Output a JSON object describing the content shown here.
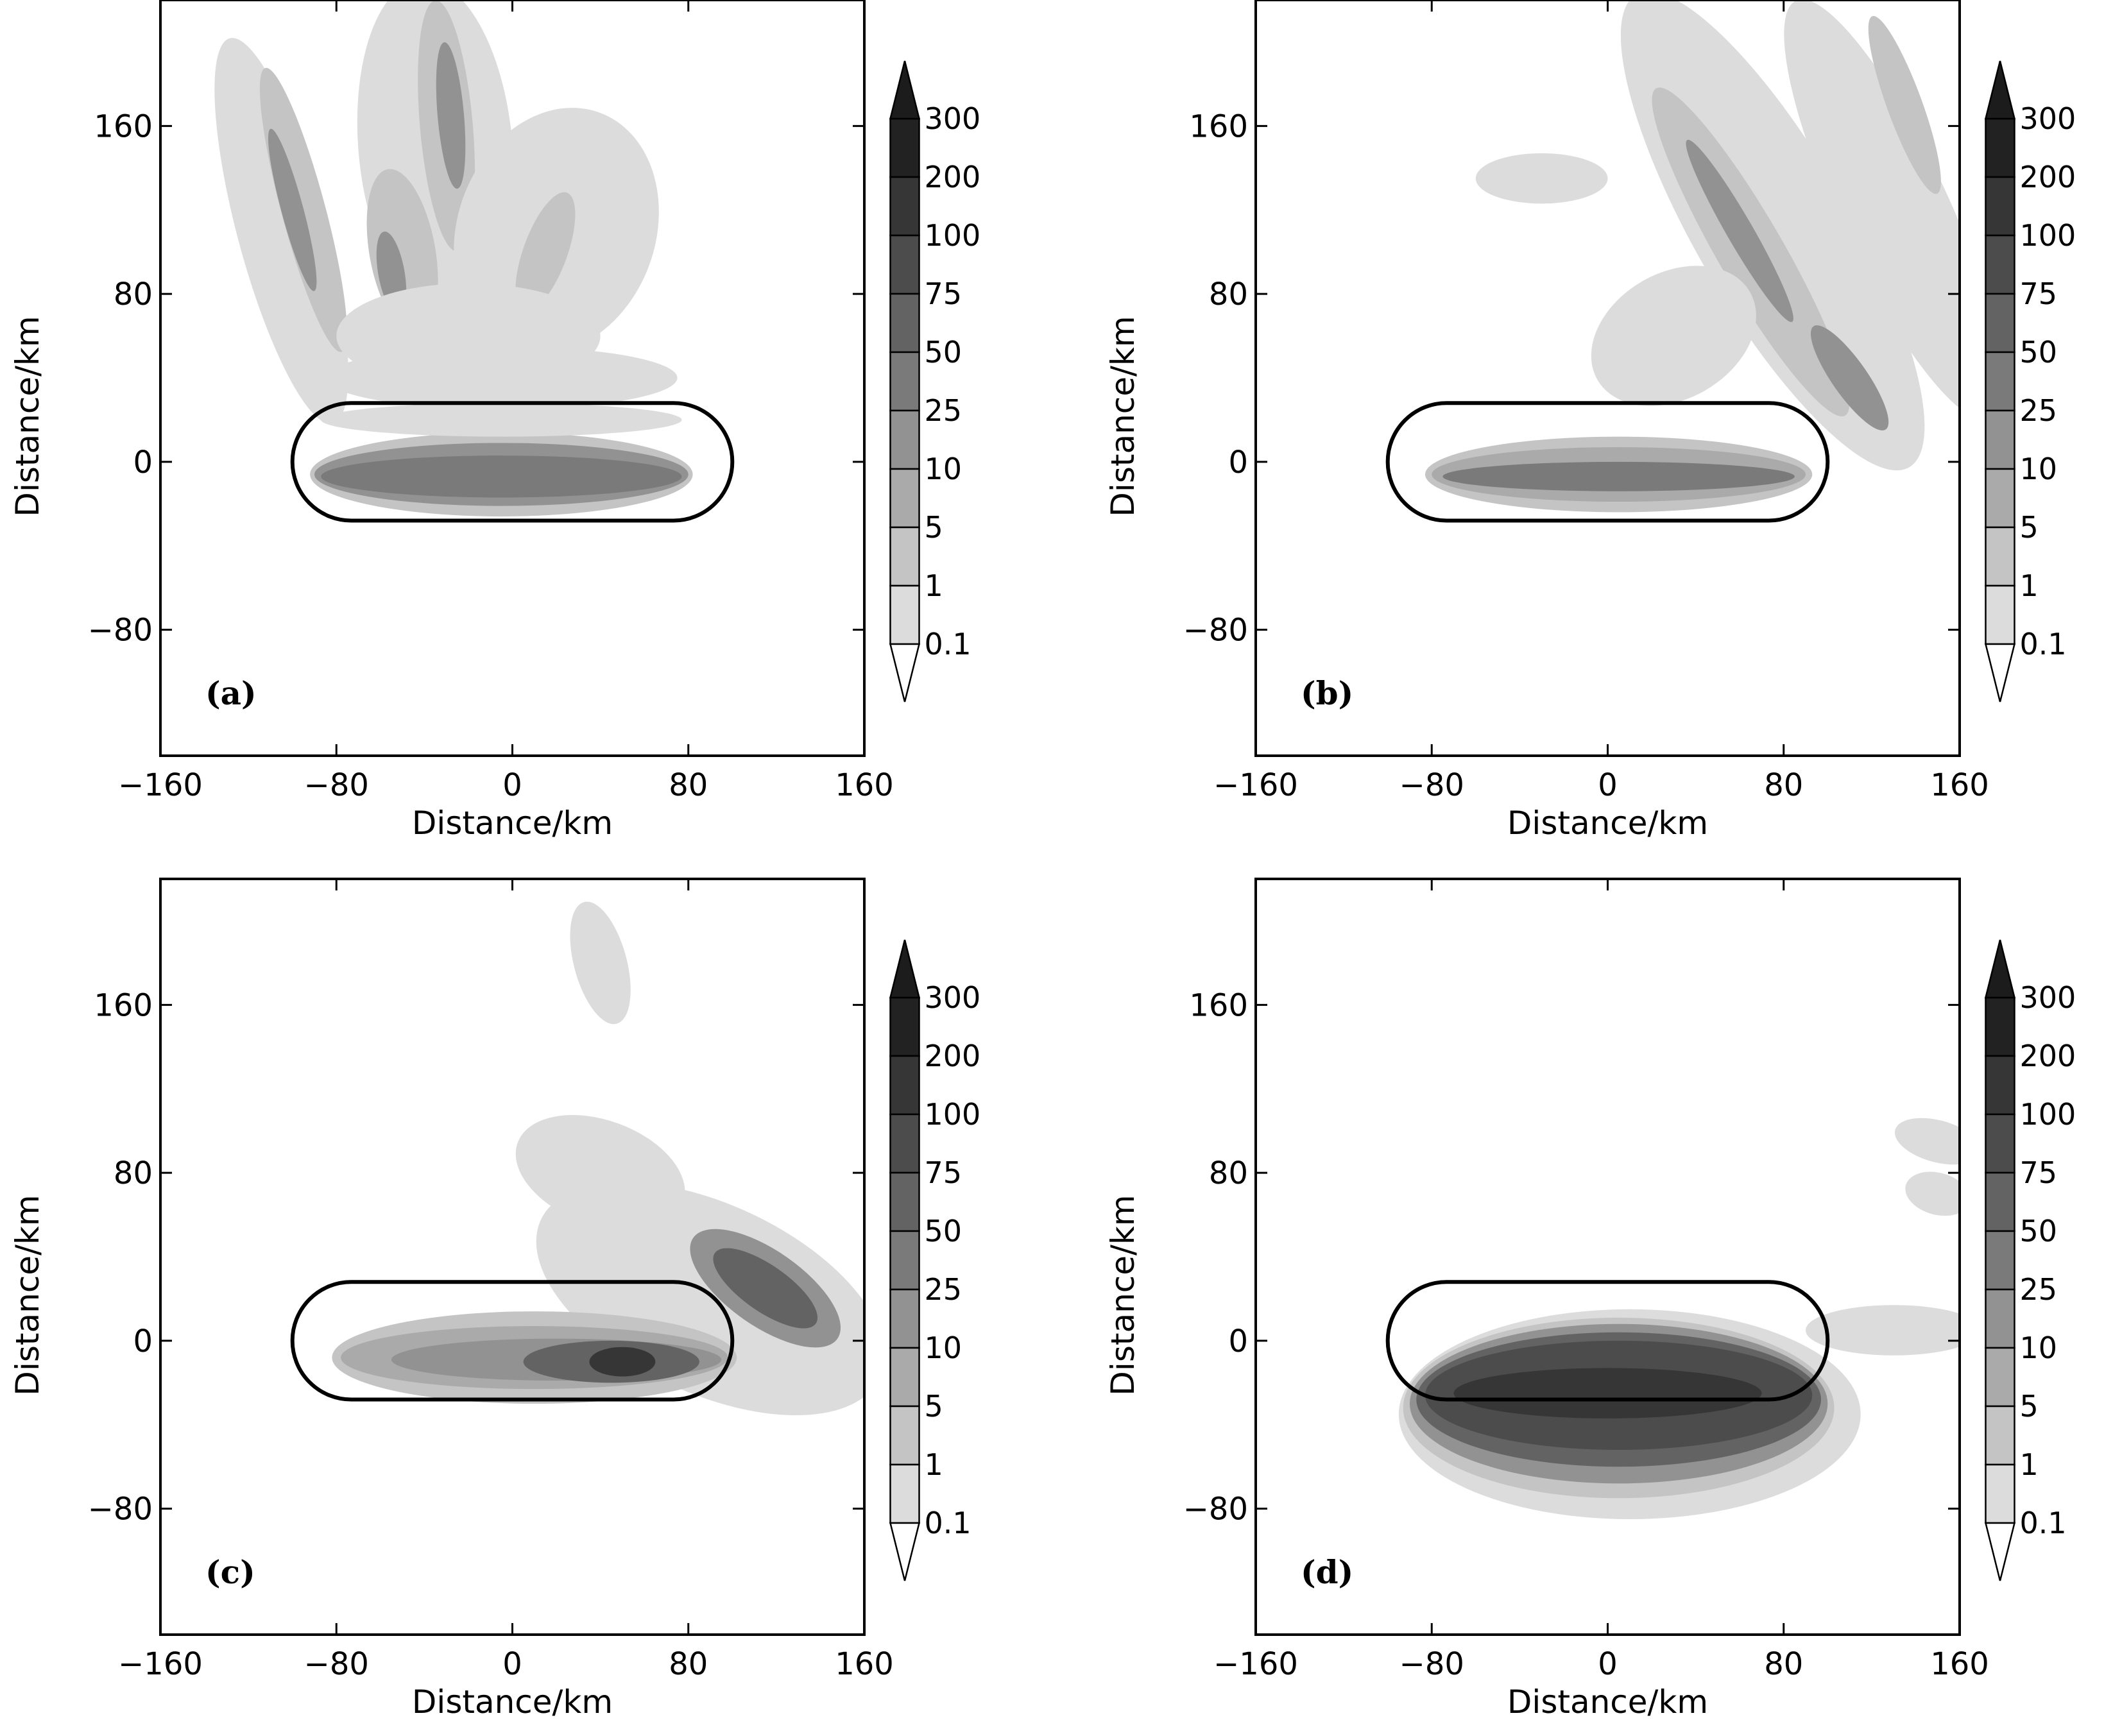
{
  "chart_data": [
    {
      "type": "heatmap",
      "panel_label": "(a)",
      "xlabel": "Distance/km",
      "ylabel": "Distance/km",
      "xlim": [
        -160,
        160
      ],
      "ylim": [
        -140,
        220
      ],
      "xticks": [
        "−160",
        "−80",
        "0",
        "80",
        "160"
      ],
      "yticks": [
        "160",
        "80",
        "0",
        "−80"
      ],
      "colorbar_levels": [
        "300",
        "200",
        "100",
        "75",
        "50",
        "25",
        "10",
        "5",
        "1",
        "0.1"
      ],
      "outline": {
        "x_min": -100,
        "x_max": 100,
        "y_min": -28,
        "y_max": 28
      },
      "blobs": [
        {
          "cx": -5,
          "cy": -6,
          "rx": 87,
          "ry": 20,
          "rot": 0,
          "level": 2
        },
        {
          "cx": -5,
          "cy": -6,
          "rx": 85,
          "ry": 15,
          "rot": 0,
          "level": 4
        },
        {
          "cx": -5,
          "cy": -7,
          "rx": 82,
          "ry": 10,
          "rot": 0,
          "level": 5
        },
        {
          "cx": -5,
          "cy": 20,
          "rx": 82,
          "ry": 8,
          "rot": 0,
          "level": 1
        },
        {
          "cx": -105,
          "cy": 110,
          "rx": 20,
          "ry": 95,
          "rot": 15,
          "level": 1
        },
        {
          "cx": -95,
          "cy": 120,
          "rx": 10,
          "ry": 70,
          "rot": 15,
          "level": 2
        },
        {
          "cx": -100,
          "cy": 120,
          "rx": 5,
          "ry": 40,
          "rot": 15,
          "level": 4
        },
        {
          "cx": -35,
          "cy": 150,
          "rx": 35,
          "ry": 80,
          "rot": 5,
          "level": 1
        },
        {
          "cx": -30,
          "cy": 160,
          "rx": 12,
          "ry": 60,
          "rot": 5,
          "level": 2
        },
        {
          "cx": -28,
          "cy": 165,
          "rx": 6,
          "ry": 35,
          "rot": 5,
          "level": 4
        },
        {
          "cx": 20,
          "cy": 110,
          "rx": 45,
          "ry": 60,
          "rot": -20,
          "level": 1
        },
        {
          "cx": 15,
          "cy": 100,
          "rx": 10,
          "ry": 30,
          "rot": -20,
          "level": 2
        },
        {
          "cx": -50,
          "cy": 100,
          "rx": 15,
          "ry": 40,
          "rot": 10,
          "level": 2
        },
        {
          "cx": -55,
          "cy": 90,
          "rx": 6,
          "ry": 20,
          "rot": 10,
          "level": 4
        },
        {
          "cx": -20,
          "cy": 60,
          "rx": 60,
          "ry": 25,
          "rot": 0,
          "level": 1
        },
        {
          "cx": -5,
          "cy": 40,
          "rx": 80,
          "ry": 15,
          "rot": 0,
          "level": 1
        }
      ]
    },
    {
      "type": "heatmap",
      "panel_label": "(b)",
      "xlabel": "Distance/km",
      "ylabel": "Distance/km",
      "xlim": [
        -160,
        160
      ],
      "ylim": [
        -140,
        220
      ],
      "xticks": [
        "−160",
        "−80",
        "0",
        "80",
        "160"
      ],
      "yticks": [
        "160",
        "80",
        "0",
        "−80"
      ],
      "colorbar_levels": [
        "300",
        "200",
        "100",
        "75",
        "50",
        "25",
        "10",
        "5",
        "1",
        "0.1"
      ],
      "outline": {
        "x_min": -100,
        "x_max": 100,
        "y_min": -28,
        "y_max": 28
      },
      "blobs": [
        {
          "cx": 5,
          "cy": -6,
          "rx": 88,
          "ry": 18,
          "rot": 0,
          "level": 2
        },
        {
          "cx": 5,
          "cy": -6,
          "rx": 85,
          "ry": 13,
          "rot": 0,
          "level": 3
        },
        {
          "cx": 5,
          "cy": -7,
          "rx": 80,
          "ry": 7,
          "rot": 0,
          "level": 5
        },
        {
          "cx": 75,
          "cy": 110,
          "rx": 35,
          "ry": 130,
          "rot": 30,
          "level": 1
        },
        {
          "cx": 65,
          "cy": 100,
          "rx": 15,
          "ry": 90,
          "rot": 30,
          "level": 2
        },
        {
          "cx": 60,
          "cy": 110,
          "rx": 6,
          "ry": 50,
          "rot": 30,
          "level": 4
        },
        {
          "cx": 130,
          "cy": 120,
          "rx": 25,
          "ry": 110,
          "rot": 25,
          "level": 1
        },
        {
          "cx": 135,
          "cy": 170,
          "rx": 8,
          "ry": 45,
          "rot": 20,
          "level": 2
        },
        {
          "cx": 110,
          "cy": 40,
          "rx": 8,
          "ry": 30,
          "rot": 35,
          "level": 4
        },
        {
          "cx": -30,
          "cy": 135,
          "rx": 30,
          "ry": 12,
          "rot": 0,
          "level": 1
        },
        {
          "cx": 30,
          "cy": 60,
          "rx": 40,
          "ry": 30,
          "rot": 30,
          "level": 1
        }
      ]
    },
    {
      "type": "heatmap",
      "panel_label": "(c)",
      "xlabel": "Distance/km",
      "ylabel": "Distance/km",
      "xlim": [
        -160,
        160
      ],
      "ylim": [
        -140,
        220
      ],
      "xticks": [
        "−160",
        "−80",
        "0",
        "80",
        "160"
      ],
      "yticks": [
        "160",
        "80",
        "0",
        "−80"
      ],
      "colorbar_levels": [
        "300",
        "200",
        "100",
        "75",
        "50",
        "25",
        "10",
        "5",
        "1",
        "0.1"
      ],
      "outline": {
        "x_min": -100,
        "x_max": 100,
        "y_min": -28,
        "y_max": 28
      },
      "blobs": [
        {
          "cx": 90,
          "cy": 20,
          "rx": 85,
          "ry": 45,
          "rot": -25,
          "level": 1
        },
        {
          "cx": 10,
          "cy": -8,
          "rx": 92,
          "ry": 22,
          "rot": 0,
          "level": 2
        },
        {
          "cx": 10,
          "cy": -8,
          "rx": 88,
          "ry": 15,
          "rot": 0,
          "level": 3
        },
        {
          "cx": 20,
          "cy": -9,
          "rx": 75,
          "ry": 10,
          "rot": 0,
          "level": 4
        },
        {
          "cx": 45,
          "cy": -10,
          "rx": 40,
          "ry": 10,
          "rot": 0,
          "level": 6
        },
        {
          "cx": 50,
          "cy": -10,
          "rx": 15,
          "ry": 7,
          "rot": 0,
          "level": 8
        },
        {
          "cx": 115,
          "cy": 25,
          "rx": 40,
          "ry": 18,
          "rot": -35,
          "level": 4
        },
        {
          "cx": 115,
          "cy": 25,
          "rx": 28,
          "ry": 11,
          "rot": -35,
          "level": 6
        },
        {
          "cx": 40,
          "cy": 180,
          "rx": 12,
          "ry": 30,
          "rot": 15,
          "level": 1
        },
        {
          "cx": 40,
          "cy": 80,
          "rx": 40,
          "ry": 25,
          "rot": -20,
          "level": 1
        }
      ]
    },
    {
      "type": "heatmap",
      "panel_label": "(d)",
      "xlabel": "Distance/km",
      "ylabel": "Distance/km",
      "xlim": [
        -160,
        160
      ],
      "ylim": [
        -140,
        220
      ],
      "xticks": [
        "−160",
        "−80",
        "0",
        "80",
        "160"
      ],
      "yticks": [
        "160",
        "80",
        "0",
        "−80"
      ],
      "colorbar_levels": [
        "300",
        "200",
        "100",
        "75",
        "50",
        "25",
        "10",
        "5",
        "1",
        "0.1"
      ],
      "outline": {
        "x_min": -100,
        "x_max": 100,
        "y_min": -28,
        "y_max": 28
      },
      "blobs": [
        {
          "cx": 10,
          "cy": -35,
          "rx": 105,
          "ry": 50,
          "rot": 0,
          "level": 1
        },
        {
          "cx": 5,
          "cy": -32,
          "rx": 98,
          "ry": 43,
          "rot": 0,
          "level": 2
        },
        {
          "cx": 5,
          "cy": -30,
          "rx": 95,
          "ry": 38,
          "rot": 0,
          "level": 4
        },
        {
          "cx": 5,
          "cy": -28,
          "rx": 92,
          "ry": 32,
          "rot": 0,
          "level": 6
        },
        {
          "cx": 5,
          "cy": -26,
          "rx": 88,
          "ry": 26,
          "rot": 0,
          "level": 7
        },
        {
          "cx": 0,
          "cy": -25,
          "rx": 70,
          "ry": 12,
          "rot": 0,
          "level": 8
        },
        {
          "cx": 130,
          "cy": 5,
          "rx": 40,
          "ry": 12,
          "rot": 0,
          "level": 1
        },
        {
          "cx": 150,
          "cy": 95,
          "rx": 20,
          "ry": 10,
          "rot": -15,
          "level": 1
        },
        {
          "cx": 150,
          "cy": 70,
          "rx": 15,
          "ry": 10,
          "rot": -15,
          "level": 1
        }
      ]
    }
  ]
}
